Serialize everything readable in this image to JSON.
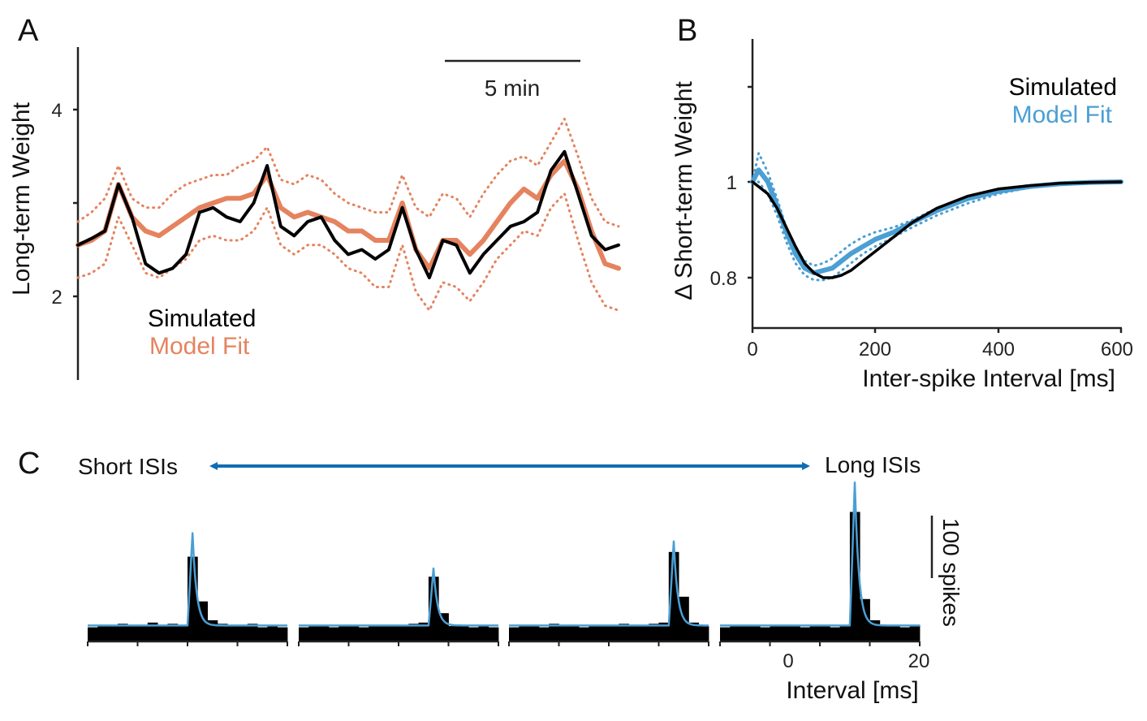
{
  "colors": {
    "simulated": "#000000",
    "fit_a": "#E5835F",
    "fit_bc": "#4A9FD4",
    "arrow": "#0F6DB3",
    "axis": "#222222"
  },
  "panels": {
    "a": {
      "letter": "A",
      "ylabel": "Long-term Weight",
      "yticks": [
        "2",
        "4"
      ],
      "scalebar": "5 min",
      "legend": [
        "Simulated",
        "Model Fit"
      ]
    },
    "b": {
      "letter": "B",
      "ylabel": "Δ Short-term Weight",
      "xlabel": "Inter-spike Interval [ms]",
      "yticks": [
        "0.8",
        "1"
      ],
      "xticks": [
        "0",
        "200",
        "400",
        "600"
      ],
      "legend": [
        "Simulated",
        "Model Fit"
      ]
    },
    "c": {
      "letter": "C",
      "arrow_left": "Short ISIs",
      "arrow_right": "Long ISIs",
      "scalebar": "100 spikes",
      "xlabel": "Interval [ms]",
      "xticks": [
        "0",
        "20"
      ]
    }
  },
  "chart_data": [
    {
      "panel": "A",
      "type": "line",
      "ylabel": "Long-term Weight",
      "ylim": [
        1.1,
        4.7
      ],
      "yticks": [
        2,
        4
      ],
      "time_scalebar": "5 min",
      "series": [
        {
          "name": "Simulated",
          "style": "solid",
          "x": [
            0,
            0.5,
            1,
            1.5,
            2,
            2.5,
            3,
            3.5,
            4,
            4.5,
            5,
            5.5,
            6,
            6.5,
            7,
            7.5,
            8,
            8.5,
            9,
            9.5,
            10,
            10.5,
            11,
            11.5,
            12,
            12.5,
            13,
            13.5,
            14,
            14.5,
            15,
            15.5,
            16,
            16.5,
            17,
            17.5,
            18,
            18.5,
            19,
            19.5,
            20
          ],
          "values": [
            2.55,
            2.62,
            2.7,
            3.2,
            2.85,
            2.35,
            2.25,
            2.3,
            2.45,
            2.9,
            2.95,
            2.85,
            2.8,
            3.0,
            3.4,
            2.75,
            2.65,
            2.8,
            2.85,
            2.6,
            2.45,
            2.5,
            2.4,
            2.5,
            2.95,
            2.5,
            2.2,
            2.6,
            2.55,
            2.25,
            2.45,
            2.6,
            2.75,
            2.8,
            2.9,
            3.35,
            3.55,
            3.1,
            2.65,
            2.5,
            2.55
          ]
        },
        {
          "name": "Model Fit",
          "style": "solid",
          "x": [
            0,
            0.5,
            1,
            1.5,
            2,
            2.5,
            3,
            3.5,
            4,
            4.5,
            5,
            5.5,
            6,
            6.5,
            7,
            7.5,
            8,
            8.5,
            9,
            9.5,
            10,
            10.5,
            11,
            11.5,
            12,
            12.5,
            13,
            13.5,
            14,
            14.5,
            15,
            15.5,
            16,
            16.5,
            17,
            17.5,
            18,
            18.5,
            19,
            19.5,
            20
          ],
          "values": [
            2.55,
            2.6,
            2.7,
            3.2,
            2.85,
            2.7,
            2.65,
            2.75,
            2.85,
            2.95,
            3.0,
            3.05,
            3.05,
            3.1,
            3.3,
            2.95,
            2.85,
            2.9,
            2.85,
            2.8,
            2.7,
            2.7,
            2.6,
            2.6,
            3.0,
            2.5,
            2.3,
            2.6,
            2.6,
            2.45,
            2.6,
            2.8,
            3.0,
            3.15,
            3.05,
            3.3,
            3.45,
            3.15,
            2.7,
            2.35,
            2.3
          ]
        },
        {
          "name": "Model Fit upper",
          "style": "dotted",
          "x": [
            0,
            0.5,
            1,
            1.5,
            2,
            2.5,
            3,
            3.5,
            4,
            4.5,
            5,
            5.5,
            6,
            6.5,
            7,
            7.5,
            8,
            8.5,
            9,
            9.5,
            10,
            10.5,
            11,
            11.5,
            12,
            12.5,
            13,
            13.5,
            14,
            14.5,
            15,
            15.5,
            16,
            16.5,
            17,
            17.5,
            18,
            18.5,
            19,
            19.5,
            20
          ],
          "values": [
            2.8,
            2.9,
            3.05,
            3.4,
            3.05,
            2.95,
            2.95,
            3.1,
            3.2,
            3.25,
            3.3,
            3.3,
            3.4,
            3.45,
            3.6,
            3.25,
            3.2,
            3.3,
            3.25,
            3.1,
            3.0,
            2.95,
            2.9,
            2.9,
            3.3,
            2.95,
            2.85,
            3.1,
            3.05,
            2.85,
            3.1,
            3.3,
            3.45,
            3.5,
            3.4,
            3.65,
            3.9,
            3.5,
            3.05,
            2.8,
            2.75
          ]
        },
        {
          "name": "Model Fit lower",
          "style": "dotted",
          "x": [
            0,
            0.5,
            1,
            1.5,
            2,
            2.5,
            3,
            3.5,
            4,
            4.5,
            5,
            5.5,
            6,
            6.5,
            7,
            7.5,
            8,
            8.5,
            9,
            9.5,
            10,
            10.5,
            11,
            11.5,
            12,
            12.5,
            13,
            13.5,
            14,
            14.5,
            15,
            15.5,
            16,
            16.5,
            17,
            17.5,
            18,
            18.5,
            19,
            19.5,
            20
          ],
          "values": [
            2.2,
            2.25,
            2.35,
            2.85,
            2.55,
            2.25,
            2.2,
            2.3,
            2.4,
            2.6,
            2.65,
            2.6,
            2.6,
            2.7,
            2.95,
            2.55,
            2.45,
            2.55,
            2.55,
            2.45,
            2.3,
            2.25,
            2.1,
            2.1,
            2.55,
            2.05,
            1.85,
            2.15,
            2.1,
            1.95,
            2.15,
            2.4,
            2.55,
            2.7,
            2.65,
            2.95,
            3.1,
            2.6,
            2.15,
            1.9,
            1.85
          ]
        }
      ],
      "legend": [
        "Simulated",
        "Model Fit"
      ],
      "legend_position": "bottom-left"
    },
    {
      "panel": "B",
      "type": "line",
      "xlabel": "Inter-spike Interval [ms]",
      "ylabel": "Δ Short-term Weight",
      "xlim": [
        0,
        600
      ],
      "ylim": [
        0.71,
        1.3
      ],
      "xticks": [
        0,
        200,
        400,
        600
      ],
      "yticks": [
        0.8,
        1
      ],
      "series": [
        {
          "name": "Simulated",
          "style": "solid",
          "x": [
            0,
            10,
            25,
            40,
            55,
            70,
            85,
            100,
            115,
            130,
            145,
            160,
            180,
            200,
            230,
            260,
            300,
            350,
            400,
            450,
            500,
            550,
            600
          ],
          "values": [
            1.0,
            0.99,
            0.975,
            0.945,
            0.905,
            0.865,
            0.83,
            0.81,
            0.8,
            0.8,
            0.805,
            0.815,
            0.835,
            0.855,
            0.885,
            0.915,
            0.945,
            0.97,
            0.985,
            0.992,
            0.997,
            0.999,
            1.0
          ]
        },
        {
          "name": "Model Fit",
          "style": "solid",
          "x": [
            0,
            10,
            25,
            40,
            55,
            70,
            85,
            100,
            115,
            130,
            145,
            160,
            180,
            200,
            230,
            260,
            300,
            350,
            400,
            450,
            500,
            550,
            600
          ],
          "values": [
            1.0,
            1.025,
            1.0,
            0.95,
            0.895,
            0.85,
            0.82,
            0.81,
            0.815,
            0.82,
            0.835,
            0.85,
            0.865,
            0.88,
            0.895,
            0.915,
            0.94,
            0.965,
            0.98,
            0.99,
            0.996,
            0.999,
            1.0
          ]
        },
        {
          "name": "Model Fit upper",
          "style": "dotted",
          "x": [
            0,
            10,
            25,
            40,
            55,
            70,
            85,
            100,
            115,
            130,
            145,
            160,
            180,
            200,
            230,
            260,
            300,
            350,
            400,
            450,
            500,
            550,
            600
          ],
          "values": [
            1.0,
            1.06,
            1.02,
            0.965,
            0.905,
            0.86,
            0.835,
            0.825,
            0.83,
            0.84,
            0.855,
            0.87,
            0.885,
            0.895,
            0.905,
            0.92,
            0.945,
            0.97,
            0.985,
            0.993,
            0.997,
            0.999,
            1.0
          ]
        },
        {
          "name": "Model Fit lower",
          "style": "dotted",
          "x": [
            0,
            10,
            25,
            40,
            55,
            70,
            85,
            100,
            115,
            130,
            145,
            160,
            180,
            200,
            230,
            260,
            300,
            350,
            400,
            450,
            500,
            550,
            600
          ],
          "values": [
            1.0,
            1.0,
            0.975,
            0.93,
            0.875,
            0.83,
            0.805,
            0.795,
            0.795,
            0.8,
            0.815,
            0.83,
            0.85,
            0.865,
            0.885,
            0.905,
            0.93,
            0.955,
            0.975,
            0.988,
            0.995,
            0.998,
            1.0
          ]
        }
      ],
      "legend": [
        "Simulated",
        "Model Fit"
      ],
      "legend_position": "top-right"
    },
    {
      "panel": "C",
      "type": "bar",
      "xlabel": "Interval [ms]",
      "xlim": [
        -20,
        20
      ],
      "xticks": [
        0,
        20
      ],
      "count_scalebar": "100 spikes",
      "subplots": [
        {
          "bin_centers": [
            -19,
            -17,
            -15,
            -13,
            -11,
            -9,
            -7,
            -5,
            -3,
            -1,
            1,
            3,
            5,
            7,
            9,
            11,
            13,
            15,
            17,
            19
          ],
          "counts": [
            12,
            14,
            13,
            15,
            14,
            13,
            16,
            14,
            15,
            14,
            72,
            34,
            18,
            15,
            13,
            14,
            15,
            12,
            14,
            12
          ],
          "fit_peak": 92
        },
        {
          "bin_centers": [
            -19,
            -17,
            -15,
            -13,
            -11,
            -9,
            -7,
            -5,
            -3,
            -1,
            1,
            3,
            5,
            7,
            9,
            11,
            13,
            15,
            17,
            19
          ],
          "counts": [
            12,
            13,
            14,
            12,
            14,
            13,
            12,
            14,
            13,
            14,
            13,
            15,
            16,
            55,
            24,
            13,
            14,
            12,
            13,
            12
          ],
          "fit_peak": 62
        },
        {
          "bin_centers": [
            -19,
            -17,
            -15,
            -13,
            -11,
            -9,
            -7,
            -5,
            -3,
            -1,
            1,
            3,
            5,
            7,
            9,
            11,
            13,
            15,
            17,
            19
          ],
          "counts": [
            12,
            13,
            14,
            12,
            15,
            13,
            14,
            12,
            13,
            14,
            13,
            15,
            14,
            13,
            15,
            16,
            76,
            38,
            16,
            13
          ],
          "fit_peak": 85
        },
        {
          "bin_centers": [
            -19,
            -17,
            -15,
            -13,
            -11,
            -9,
            -7,
            -5,
            -3,
            -1,
            1,
            3,
            5,
            7,
            9,
            11,
            13,
            15,
            17,
            19
          ],
          "counts": [
            12,
            13,
            14,
            13,
            12,
            14,
            13,
            14,
            12,
            13,
            14,
            12,
            13,
            110,
            36,
            18,
            14,
            13,
            12,
            14
          ],
          "fit_peak": 135
        }
      ],
      "series": [
        {
          "name": "Simulated",
          "style": "bars"
        },
        {
          "name": "Model Fit",
          "style": "line"
        }
      ]
    }
  ]
}
